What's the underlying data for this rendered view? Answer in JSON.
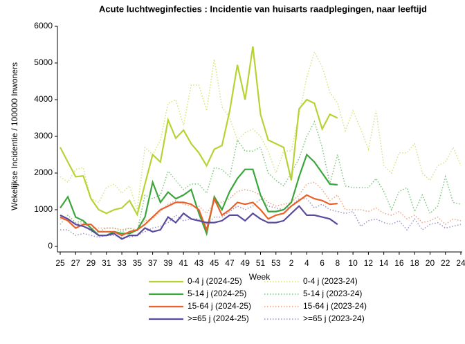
{
  "chart_data": {
    "type": "line",
    "title": "Acute luchtweginfecties : Incidentie van huisarts raadplegingen, naar leeftijd",
    "x_label": "Week",
    "y_label": "Wekelijkse Incidentie / 100000 Inwoners",
    "categories": [
      "25",
      null,
      "27",
      null,
      "29",
      null,
      "31",
      null,
      "33",
      null,
      "35",
      null,
      "37",
      null,
      "39",
      null,
      "41",
      null,
      "43",
      null,
      "45",
      null,
      "47",
      null,
      "49",
      null,
      "51",
      null,
      "53",
      null,
      "2",
      null,
      "4",
      null,
      "6",
      null,
      "8",
      null,
      "10",
      null,
      "12",
      null,
      "14",
      null,
      "16",
      null,
      "18",
      null,
      "20",
      null,
      "22",
      null,
      "24"
    ],
    "ylim": [
      0,
      6000
    ],
    "yticks": [
      0,
      1000,
      2000,
      3000,
      4000,
      5000,
      6000
    ],
    "grid": false,
    "series": [
      {
        "name": "0-4 j (2024-25)",
        "color": "#b6d334",
        "style": "solid",
        "values": [
          2700,
          2300,
          1900,
          1920,
          1300,
          1000,
          900,
          1000,
          1050,
          1250,
          870,
          1700,
          2500,
          2300,
          3450,
          2950,
          3170,
          2800,
          2550,
          2200,
          2650,
          2750,
          3700,
          4950,
          4000,
          5450,
          3600,
          2900,
          2800,
          2700,
          1800,
          3750,
          4000,
          3900,
          3200,
          3600,
          3500,
          null,
          null,
          null,
          null,
          null,
          null,
          null,
          null,
          null,
          null,
          null,
          null,
          null,
          null,
          null,
          null
        ]
      },
      {
        "name": "0-4 j (2023-24)",
        "color": "#d3e57c",
        "style": "dotted",
        "values": [
          1900,
          1750,
          2100,
          2150,
          1300,
          1200,
          1600,
          1700,
          1450,
          1650,
          1000,
          2700,
          2500,
          2900,
          3900,
          4000,
          3300,
          4400,
          4400,
          3700,
          5100,
          3800,
          3500,
          2900,
          3100,
          3200,
          3000,
          2600,
          2000,
          2600,
          2600,
          3600,
          4600,
          5300,
          4900,
          4200,
          3900,
          3150,
          3700,
          3200,
          2650,
          3700,
          2200,
          2000,
          2550,
          2550,
          2800,
          2000,
          1800,
          2200,
          2300,
          2700,
          2200
        ]
      },
      {
        "name": "5-14 j (2024-25)",
        "color": "#3aa53a",
        "style": "solid",
        "values": [
          1050,
          1350,
          800,
          700,
          500,
          300,
          300,
          400,
          350,
          350,
          450,
          800,
          1750,
          1200,
          1480,
          1300,
          1400,
          1550,
          900,
          350,
          1350,
          1000,
          1500,
          1850,
          2100,
          2100,
          1400,
          950,
          950,
          1000,
          1200,
          1900,
          2500,
          2300,
          2000,
          1700,
          1680,
          null,
          null,
          null,
          null,
          null,
          null,
          null,
          null,
          null,
          null,
          null,
          null,
          null,
          null,
          null,
          null
        ]
      },
      {
        "name": "5-14 j (2023-24)",
        "color": "#7cc47c",
        "style": "dotted",
        "values": [
          600,
          850,
          650,
          700,
          400,
          400,
          500,
          500,
          400,
          500,
          400,
          1400,
          1300,
          1400,
          2050,
          1800,
          1550,
          1700,
          1700,
          1450,
          2150,
          2100,
          1900,
          2900,
          2600,
          2600,
          2700,
          2000,
          1800,
          1650,
          2000,
          2400,
          3000,
          3400,
          2700,
          1700,
          2500,
          1650,
          1600,
          1600,
          1600,
          1850,
          1500,
          1000,
          1500,
          1600,
          950,
          1400,
          900,
          1100,
          1900,
          1200,
          1150
        ]
      },
      {
        "name": "15-64 j (2024-25)",
        "color": "#e8602a",
        "style": "solid",
        "values": [
          800,
          700,
          500,
          600,
          600,
          400,
          400,
          400,
          300,
          400,
          450,
          600,
          800,
          1000,
          1100,
          1200,
          1200,
          1150,
          1000,
          450,
          1300,
          850,
          1000,
          1200,
          1150,
          1200,
          1000,
          750,
          850,
          900,
          1100,
          1250,
          1400,
          1300,
          1250,
          1150,
          1170,
          null,
          null,
          null,
          null,
          null,
          null,
          null,
          null,
          null,
          null,
          null,
          null,
          null,
          null,
          null,
          null
        ]
      },
      {
        "name": "15-64 j (2023-24)",
        "color": "#f0a07c",
        "style": "dotted",
        "values": [
          750,
          750,
          600,
          650,
          500,
          500,
          500,
          500,
          450,
          500,
          450,
          700,
          750,
          950,
          1150,
          1250,
          1150,
          1100,
          1100,
          900,
          1200,
          1200,
          1300,
          1500,
          1550,
          1500,
          1400,
          1200,
          1100,
          1150,
          1200,
          1400,
          1700,
          1750,
          1550,
          1250,
          1400,
          1000,
          1000,
          1000,
          950,
          1050,
          900,
          850,
          950,
          750,
          850,
          650,
          700,
          800,
          600,
          750,
          700
        ]
      },
      {
        "name": ">=65 j (2024-25)",
        "color": "#5a4a9e",
        "style": "solid",
        "values": [
          850,
          750,
          600,
          550,
          450,
          300,
          300,
          350,
          200,
          300,
          300,
          500,
          400,
          450,
          800,
          650,
          900,
          750,
          700,
          650,
          650,
          700,
          850,
          850,
          700,
          900,
          750,
          650,
          650,
          700,
          900,
          1100,
          850,
          850,
          800,
          750,
          600,
          null,
          null,
          null,
          null,
          null,
          null,
          null,
          null,
          null,
          null,
          null,
          null,
          null,
          null,
          null,
          null
        ]
      },
      {
        "name": ">=65 j (2023-24)",
        "color": "#9b90c8",
        "style": "dotted",
        "values": [
          450,
          450,
          300,
          350,
          300,
          250,
          300,
          300,
          250,
          250,
          300,
          400,
          500,
          550,
          650,
          850,
          700,
          750,
          750,
          600,
          800,
          800,
          950,
          1100,
          1000,
          1100,
          1300,
          1100,
          1050,
          1000,
          1100,
          1300,
          1300,
          1050,
          1150,
          1000,
          950,
          900,
          950,
          550,
          700,
          750,
          650,
          600,
          700,
          450,
          750,
          450,
          600,
          650,
          500,
          550,
          600
        ]
      }
    ]
  }
}
